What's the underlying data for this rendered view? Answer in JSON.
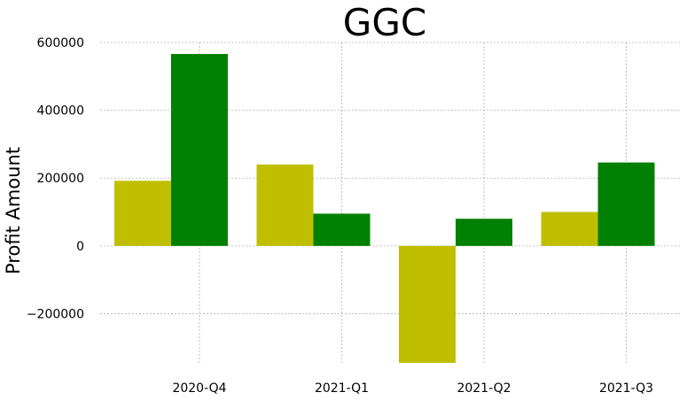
{
  "chart_data": {
    "type": "bar",
    "title": "GGC",
    "xlabel": "",
    "ylabel": "Profit Amount",
    "categories": [
      "2020-Q4",
      "2021-Q1",
      "2021-Q2",
      "2021-Q3"
    ],
    "series": [
      {
        "values": [
          192000,
          240000,
          -345000,
          100000
        ],
        "color": "#bfbf00"
      },
      {
        "values": [
          566000,
          95000,
          80000,
          246000
        ],
        "color": "#008000"
      }
    ],
    "yticks": [
      -200000,
      0,
      200000,
      400000,
      600000
    ],
    "ytick_labels": [
      "−200000",
      "0",
      "200000",
      "400000",
      "600000"
    ],
    "ylim": [
      -345000,
      600000
    ],
    "grid": true,
    "legend": "none"
  }
}
